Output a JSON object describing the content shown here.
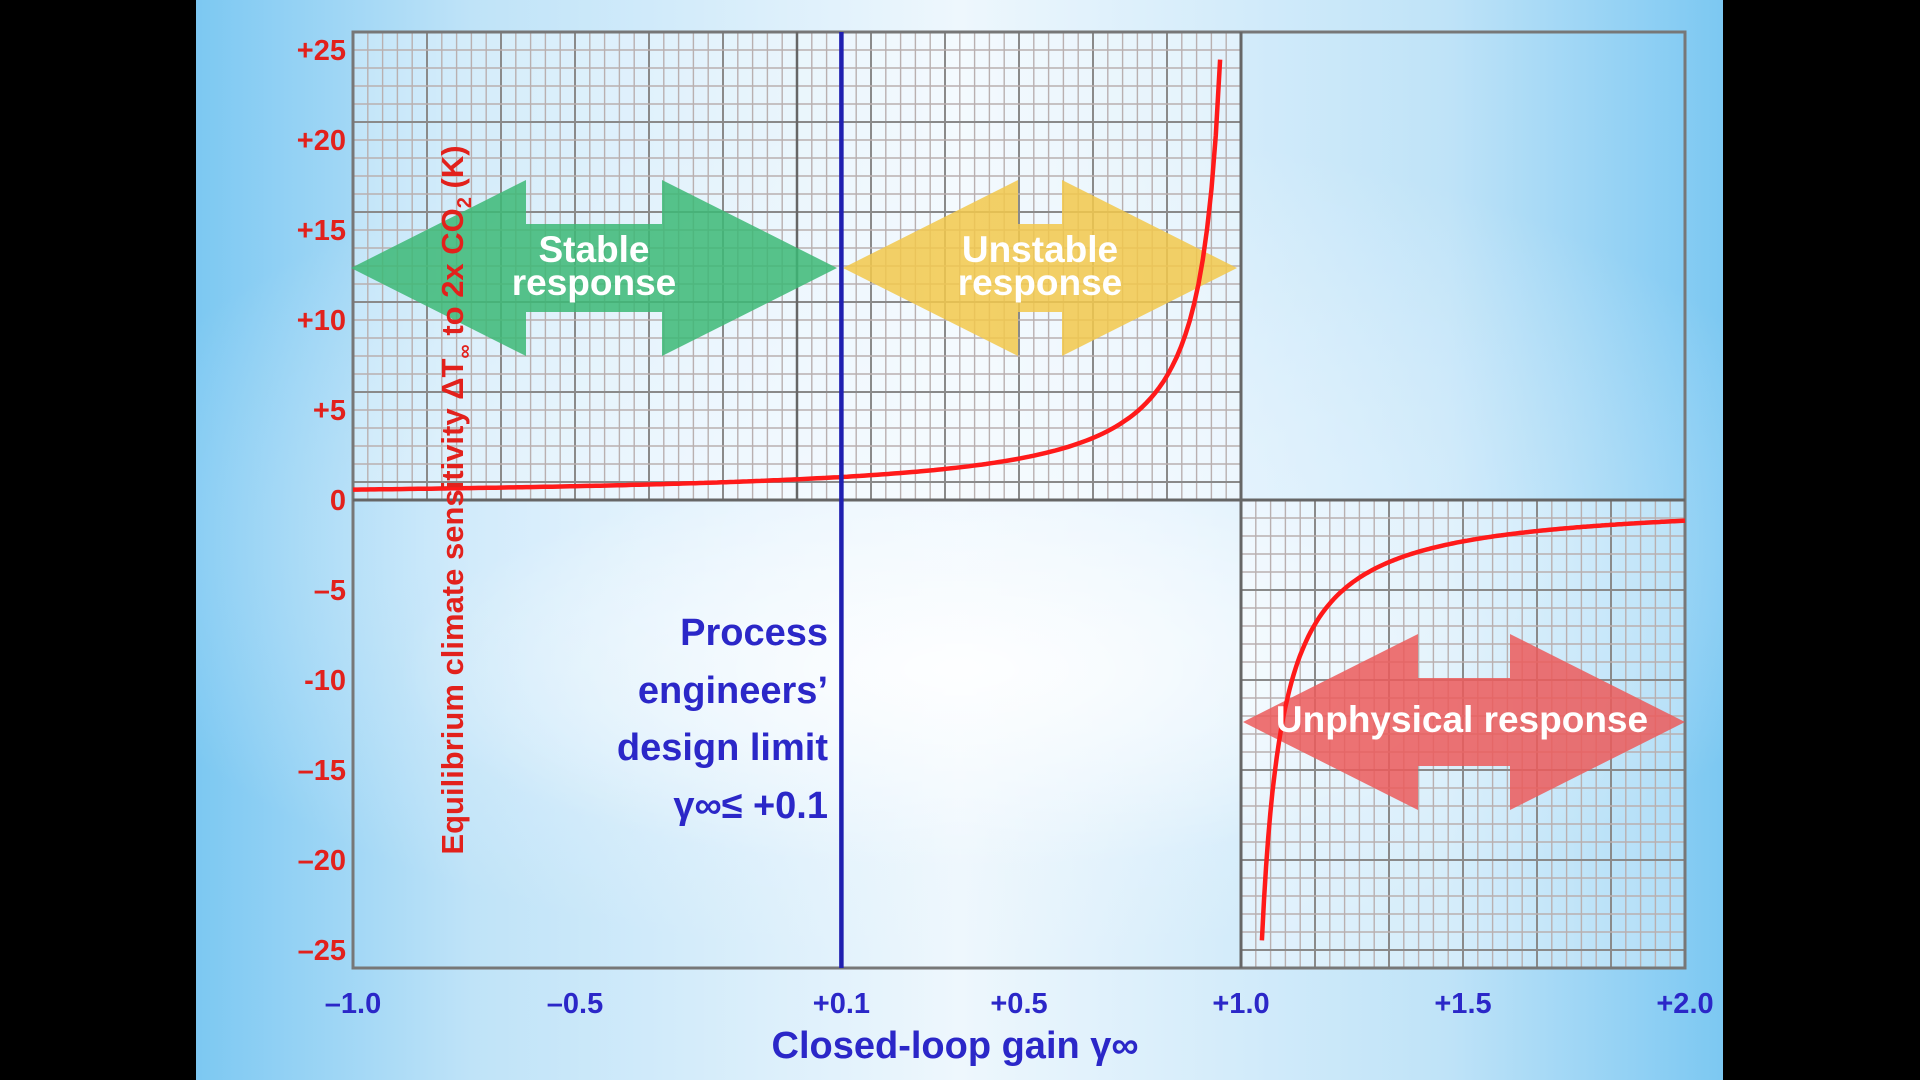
{
  "chart_data": {
    "type": "line",
    "xlabel": "Closed-loop gain γ∞",
    "ylabel_parts": [
      "Equilibrium climate sensitivity ΔT",
      "∞",
      " to 2x CO",
      "2",
      " (K)"
    ],
    "xlim": [
      -1.0,
      2.0
    ],
    "ylim": [
      -26,
      26
    ],
    "x_ticks": [
      -1.0,
      -0.5,
      0.1,
      0.5,
      1.0,
      1.5,
      2.0
    ],
    "x_tick_labels": [
      "–1.0",
      "–0.5",
      "+0.1",
      "+0.5",
      "+1.0",
      "+1.5",
      "+2.0"
    ],
    "y_ticks": [
      25,
      20,
      15,
      10,
      5,
      0,
      -5,
      -10,
      -15,
      -20,
      -25
    ],
    "y_tick_labels": [
      "+25",
      "+20",
      "+15",
      "+10",
      "+5",
      "0",
      "–5",
      "-10",
      "–15",
      "–20",
      "–25"
    ],
    "grid": true,
    "series": [
      {
        "color": "#ff1a1a",
        "note_formula_values": true,
        "segments": [
          {
            "x_range": [
              -1.0,
              0.953
            ],
            "y_at": {
              "-1.0": 0.6,
              "0.1": 1.3,
              "0.5": 2.3,
              "0.8": 5.9,
              "0.9": 11.7,
              "0.95": 23
            }
          },
          {
            "x_range": [
              1.047,
              2.0
            ],
            "y_at": {
              "1.05": -25,
              "1.1": -11.6,
              "1.25": -4.7,
              "1.5": -2.3,
              "2.0": -1.2
            }
          }
        ]
      }
    ],
    "design_limit": {
      "x": 0.1,
      "color": "#1f1fb0"
    },
    "annotations": {
      "stable": {
        "lines": [
          "Stable",
          "response"
        ],
        "color": "#3cb876"
      },
      "unstable": {
        "lines": [
          "Unstable",
          "response"
        ],
        "color": "#f2c84b"
      },
      "unphysical": {
        "lines": [
          "Unphysical response"
        ],
        "color": "#ec5a5a"
      },
      "limit_text": [
        "Process",
        "engineers’",
        "design limit",
        "γ∞≤ +0.1"
      ]
    }
  }
}
